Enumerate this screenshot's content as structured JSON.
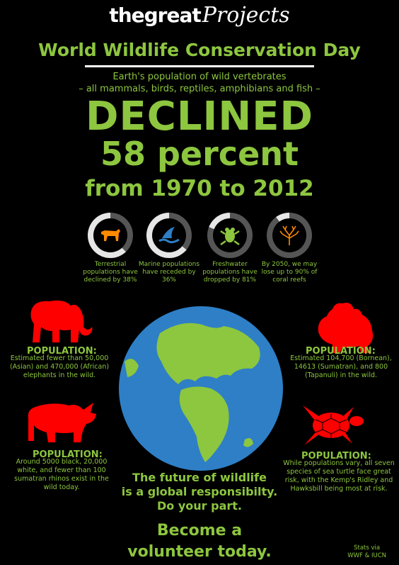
{
  "brand": {
    "bold": "thegreat",
    "script": "Projects"
  },
  "title": "World Wildlife Conservation Day",
  "intro": {
    "line1": "Earth's population of wild vertebrates",
    "line2": "– all mammals, birds, reptiles, amphibians and fish –"
  },
  "headline": {
    "declined": "DECLINED",
    "percent": "58 percent",
    "years": "from 1970 to 2012"
  },
  "stats": [
    {
      "icon": "tiger-icon",
      "value_pct": 38,
      "text": "Terrestrial populations have declined by 38%"
    },
    {
      "icon": "shark-fin-icon",
      "value_pct": 36,
      "text": "Marine populations have receded by 36%"
    },
    {
      "icon": "frog-icon",
      "value_pct": 81,
      "text": "Freshwater populations have dropped by 81%"
    },
    {
      "icon": "coral-icon",
      "value_pct": 90,
      "text": "By 2050, we may lose up to 90% of coral reefs"
    }
  ],
  "populations": {
    "elephant": {
      "title": "POPULATION:",
      "text": "Estimated fewer than 50,000 (Asian) and 470,000 (African) elephants in the wild."
    },
    "orangutan": {
      "title": "POPULATION:",
      "text": "Estimated 104,700 (Bornean), 14613 (Sumatran), and 800 (Tapanuli) in the wild."
    },
    "rhino": {
      "title": "POPULATION:",
      "text": "Around 5000 black, 20,000 white, and fewer than 100 sumatran rhinos exist in the wild today."
    },
    "turtle": {
      "title": "POPULATION:",
      "text": "While populations vary, all seven species of sea turtle face great risk, with the Kemp's Ridley and Hawksbill being most at risk."
    }
  },
  "cta": {
    "line1": "The future of wildlife",
    "line2": "is a global responsibilty.",
    "line3": "Do your part.",
    "line4": "Become a",
    "line5": "volunteer today."
  },
  "credit": {
    "line1": "Stats via",
    "line2": "WWF & IUCN"
  },
  "colors": {
    "green": "#8dc63f",
    "red": "#ff0000",
    "ring_bg": "#e6e6e6",
    "ring_fill": "#555555",
    "ocean": "#2e7fc6",
    "land": "#8dc63f"
  }
}
